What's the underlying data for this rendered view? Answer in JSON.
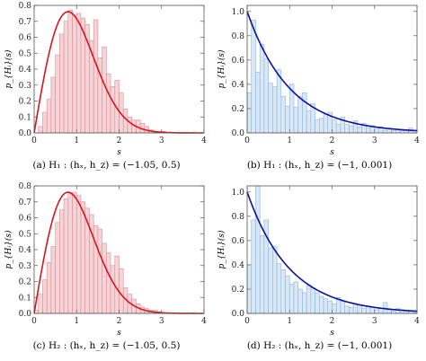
{
  "chart_data": [
    {
      "type": "bar",
      "caption": "(a) H₁ : (hₓ, h_z) = (−1.05, 0.5)",
      "xlabel": "s",
      "ylabel": "p_{Hᵢ}(s)",
      "xlim": [
        0,
        4
      ],
      "ylim": [
        0,
        0.8
      ],
      "xticks": [
        "0",
        "1",
        "2",
        "3",
        "4"
      ],
      "yticks": [
        "0.0",
        "0.1",
        "0.2",
        "0.3",
        "0.4",
        "0.5",
        "0.6",
        "0.7",
        "0.8"
      ],
      "bin_width": 0.1,
      "histogram": [
        0.0,
        0.04,
        0.13,
        0.21,
        0.35,
        0.49,
        0.62,
        0.7,
        0.77,
        0.74,
        0.75,
        0.72,
        0.68,
        0.58,
        0.71,
        0.47,
        0.54,
        0.37,
        0.29,
        0.33,
        0.25,
        0.15,
        0.1,
        0.08,
        0.08,
        0.06,
        0.04,
        0.02,
        0.01,
        0.01,
        0.01,
        0,
        0,
        0,
        0,
        0,
        0,
        0,
        0,
        0
      ],
      "curve": "wigner_goe",
      "bar_fill": "#f6d3d6",
      "bar_stroke": "#d98e95",
      "curve_color": "#d8141c"
    },
    {
      "type": "bar",
      "caption": "(b) H₁ : (hₓ, h_z) = (−1, 0.001)",
      "xlabel": "s",
      "ylabel": "p_{Hᵢ}(s)",
      "xlim": [
        0,
        4
      ],
      "ylim": [
        0,
        1.05
      ],
      "xticks": [
        "0",
        "1",
        "2",
        "3",
        "4"
      ],
      "yticks": [
        "0.0",
        "0.2",
        "0.4",
        "0.6",
        "0.8",
        "1.0"
      ],
      "bin_width": 0.1,
      "histogram": [
        0.33,
        0.93,
        0.5,
        0.73,
        0.61,
        0.41,
        0.38,
        0.52,
        0.3,
        0.22,
        0.4,
        0.21,
        0.3,
        0.33,
        0.18,
        0.24,
        0.11,
        0.12,
        0.15,
        0.17,
        0.11,
        0.07,
        0.13,
        0.07,
        0.06,
        0.1,
        0.05,
        0.08,
        0.04,
        0.06,
        0.03,
        0.05,
        0.02,
        0.04,
        0.02,
        0.03,
        0.02,
        0.02,
        0.04,
        0.02
      ],
      "curve": "poisson",
      "bar_fill": "#d8e8f6",
      "bar_stroke": "#8db3d9",
      "curve_color": "#0a10a6"
    },
    {
      "type": "bar",
      "caption": "(c) H₂ : (hₓ, h_z) = (−1.05, 0.5)",
      "xlabel": "s",
      "ylabel": "p_{Hᵢ}(s)",
      "xlim": [
        0,
        4
      ],
      "ylim": [
        0,
        0.8
      ],
      "xticks": [
        "0",
        "1",
        "2",
        "3",
        "4"
      ],
      "yticks": [
        "0.0",
        "0.1",
        "0.2",
        "0.3",
        "0.4",
        "0.5",
        "0.6",
        "0.7",
        "0.8"
      ],
      "bin_width": 0.1,
      "histogram": [
        0.02,
        0.12,
        0.21,
        0.32,
        0.42,
        0.57,
        0.65,
        0.72,
        0.75,
        0.76,
        0.74,
        0.7,
        0.66,
        0.62,
        0.55,
        0.53,
        0.44,
        0.38,
        0.3,
        0.36,
        0.28,
        0.16,
        0.12,
        0.09,
        0.06,
        0.04,
        0.03,
        0.02,
        0.02,
        0.01,
        0,
        0,
        0,
        0,
        0,
        0,
        0,
        0,
        0,
        0
      ],
      "curve": "wigner_goe",
      "bar_fill": "#f6d3d6",
      "bar_stroke": "#d98e95",
      "curve_color": "#d8141c"
    },
    {
      "type": "bar",
      "caption": "(d) H₂ : (hₓ, h_z) = (−1, 0.001)",
      "xlabel": "s",
      "ylabel": "p_{Hᵢ}(s)",
      "xlim": [
        0,
        4
      ],
      "ylim": [
        0,
        1.05
      ],
      "xticks": [
        "0",
        "1",
        "2",
        "3",
        "4"
      ],
      "yticks": [
        "0.0",
        "0.2",
        "0.4",
        "0.6",
        "0.8",
        "1.0"
      ],
      "bin_width": 0.1,
      "histogram": [
        0.4,
        0.77,
        1.09,
        0.64,
        0.77,
        0.54,
        0.55,
        0.41,
        0.36,
        0.31,
        0.24,
        0.26,
        0.2,
        0.17,
        0.23,
        0.21,
        0.17,
        0.14,
        0.12,
        0.1,
        0.08,
        0.13,
        0.1,
        0.06,
        0.05,
        0.08,
        0.07,
        0.04,
        0.06,
        0.05,
        0.03,
        0.04,
        0.09,
        0.03,
        0.02,
        0.04,
        0.03,
        0.02,
        0.02,
        0.01
      ],
      "curve": "poisson",
      "bar_fill": "#d8e8f6",
      "bar_stroke": "#8db3d9",
      "curve_color": "#0a10a6"
    }
  ]
}
